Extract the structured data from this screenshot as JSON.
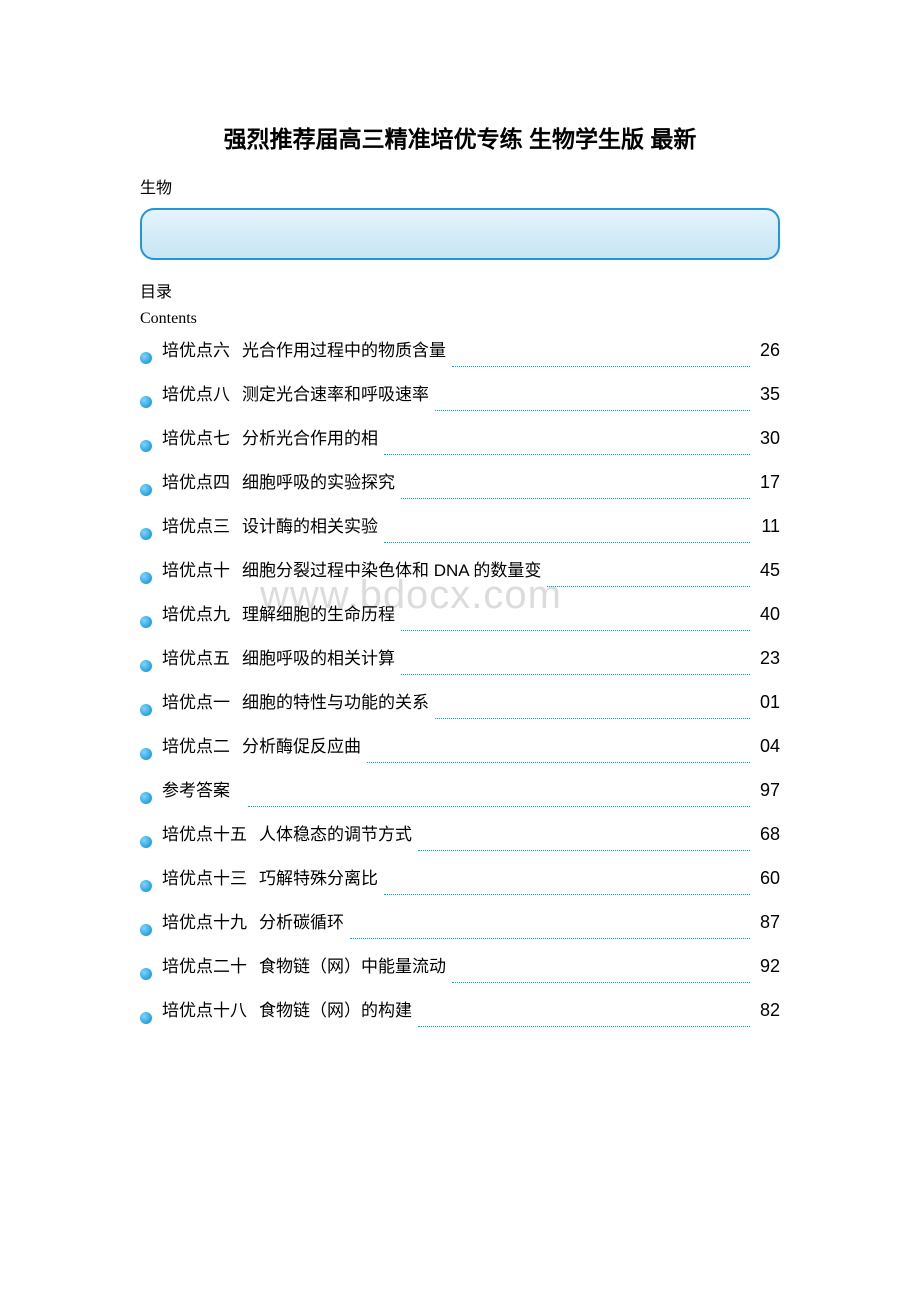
{
  "title": "强烈推荐届高三精准培优专练 生物学生版 最新",
  "subject": "生物",
  "toc_label": "目录",
  "contents_label": "Contents",
  "watermark": "www.bdocx.com",
  "colors": {
    "accent": "#2196d8",
    "banner_gradient_top": "#e6f4fb",
    "banner_gradient_bottom": "#c8e6f5",
    "bullet_light": "#7fd4ff",
    "bullet_dark": "#1a8ac4",
    "text": "#000000",
    "watermark": "#dcdcdc",
    "background": "#ffffff"
  },
  "toc": [
    {
      "label": "培优点六",
      "text": "光合作用过程中的物质含量",
      "page": "26"
    },
    {
      "label": "培优点八",
      "text": "测定光合速率和呼吸速率",
      "page": "35"
    },
    {
      "label": "培优点七",
      "text": "分析光合作用的相",
      "page": "30"
    },
    {
      "label": "培优点四",
      "text": "细胞呼吸的实验探究",
      "page": "17"
    },
    {
      "label": "培优点三",
      "text": "设计酶的相关实验",
      "page": "11"
    },
    {
      "label": "培优点十",
      "text": "细胞分裂过程中染色体和 DNA 的数量变",
      "page": "45"
    },
    {
      "label": "培优点九",
      "text": "理解细胞的生命历程",
      "page": "40"
    },
    {
      "label": "培优点五",
      "text": "细胞呼吸的相关计算",
      "page": "23"
    },
    {
      "label": "培优点一",
      "text": "细胞的特性与功能的关系",
      "page": "01"
    },
    {
      "label": "培优点二",
      "text": "分析酶促反应曲",
      "page": "04"
    },
    {
      "label": "参考答案",
      "text": "",
      "page": "97"
    },
    {
      "label": "培优点十五",
      "text": "人体稳态的调节方式",
      "page": "68"
    },
    {
      "label": "培优点十三",
      "text": "巧解特殊分离比",
      "page": "60"
    },
    {
      "label": "培优点十九",
      "text": "分析碳循环",
      "page": "87"
    },
    {
      "label": "培优点二十",
      "text": "食物链（网）中能量流动",
      "page": "92"
    },
    {
      "label": "培优点十八",
      "text": "食物链（网）的构建",
      "page": "82"
    }
  ]
}
